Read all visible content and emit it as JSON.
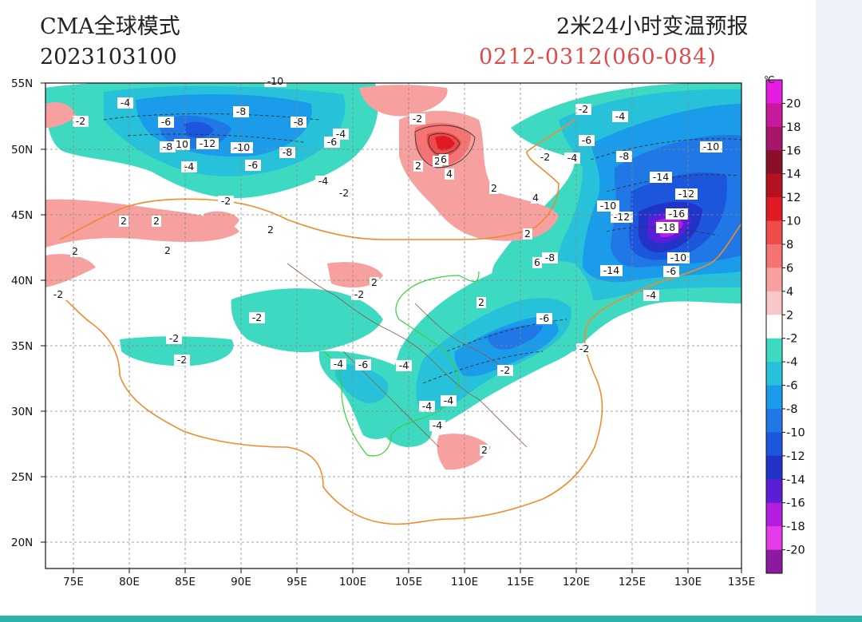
{
  "header": {
    "model": "CMA全球模式",
    "init_time": "2023103100",
    "product": "2米24小时变温预报",
    "valid": "0212-0312(060-084)"
  },
  "map": {
    "lat_labels": [
      "55N",
      "50N",
      "45N",
      "40N",
      "35N",
      "30N",
      "25N",
      "20N"
    ],
    "lon_labels": [
      "75E",
      "80E",
      "85E",
      "90E",
      "95E",
      "100E",
      "105E",
      "110E",
      "115E",
      "120E",
      "125E",
      "130E",
      "135E"
    ],
    "extent": {
      "lon": [
        73,
        135
      ],
      "lat": [
        18,
        55
      ]
    }
  },
  "colorbar": {
    "unit": "℃",
    "labels": [
      "20",
      "18",
      "16",
      "14",
      "12",
      "10",
      "8",
      "6",
      "4",
      "2",
      "-2",
      "-4",
      "-6",
      "-8",
      "-10",
      "-12",
      "-14",
      "-16",
      "-18",
      "-20"
    ],
    "colors": [
      "#e61ce0",
      "#c8189c",
      "#a8166c",
      "#8c0f2a",
      "#b3121e",
      "#e01a25",
      "#ef4b4b",
      "#f57373",
      "#f6a0a0",
      "#f9c7c7",
      "#ffffff",
      "#3dd9c1",
      "#27c2d9",
      "#1b9cea",
      "#1f78e6",
      "#1c56dc",
      "#2233c8",
      "#5a1ed8",
      "#b31ee0",
      "#e43ae8",
      "#8b1aa0"
    ]
  },
  "contour_labels": [
    {
      "t": "-10"
    },
    {
      "t": "-4"
    },
    {
      "t": "-2"
    },
    {
      "t": "-6"
    },
    {
      "t": "-8"
    },
    {
      "t": "-8"
    },
    {
      "t": "-12"
    },
    {
      "t": "10"
    },
    {
      "t": "-8"
    },
    {
      "t": "-10"
    },
    {
      "t": "-6"
    },
    {
      "t": "-8"
    },
    {
      "t": "-4"
    },
    {
      "t": "-6"
    },
    {
      "t": "-4"
    },
    {
      "t": "-4"
    },
    {
      "t": "-2"
    },
    {
      "t": "2"
    },
    {
      "t": "-2"
    },
    {
      "t": "6"
    },
    {
      "t": "4"
    },
    {
      "t": "2"
    },
    {
      "t": "2"
    },
    {
      "t": "4"
    },
    {
      "t": "2"
    },
    {
      "t": "-2"
    },
    {
      "t": "-4"
    },
    {
      "t": "-6"
    },
    {
      "t": "-2"
    },
    {
      "t": "-4"
    },
    {
      "t": "-8"
    },
    {
      "t": "-10"
    },
    {
      "t": "-14"
    },
    {
      "t": "-12"
    },
    {
      "t": "-10"
    },
    {
      "t": "-16"
    },
    {
      "t": "-12"
    },
    {
      "t": "-18"
    },
    {
      "t": "-10"
    },
    {
      "t": "-6"
    },
    {
      "t": "-14"
    },
    {
      "t": "-8"
    },
    {
      "t": "6"
    },
    {
      "t": "-4"
    },
    {
      "t": "2"
    },
    {
      "t": "2"
    },
    {
      "t": "2"
    },
    {
      "t": "2"
    },
    {
      "t": "2"
    },
    {
      "t": "-2"
    },
    {
      "t": "2"
    },
    {
      "t": "-2"
    },
    {
      "t": "-2"
    },
    {
      "t": "-2"
    },
    {
      "t": "-2"
    },
    {
      "t": "-4"
    },
    {
      "t": "-6"
    },
    {
      "t": "-4"
    },
    {
      "t": "-4"
    },
    {
      "t": "-4"
    },
    {
      "t": "2"
    },
    {
      "t": "-2"
    },
    {
      "t": "-6"
    },
    {
      "t": "-4"
    },
    {
      "t": "-2"
    },
    {
      "t": "2"
    },
    {
      "t": "-2"
    }
  ]
}
